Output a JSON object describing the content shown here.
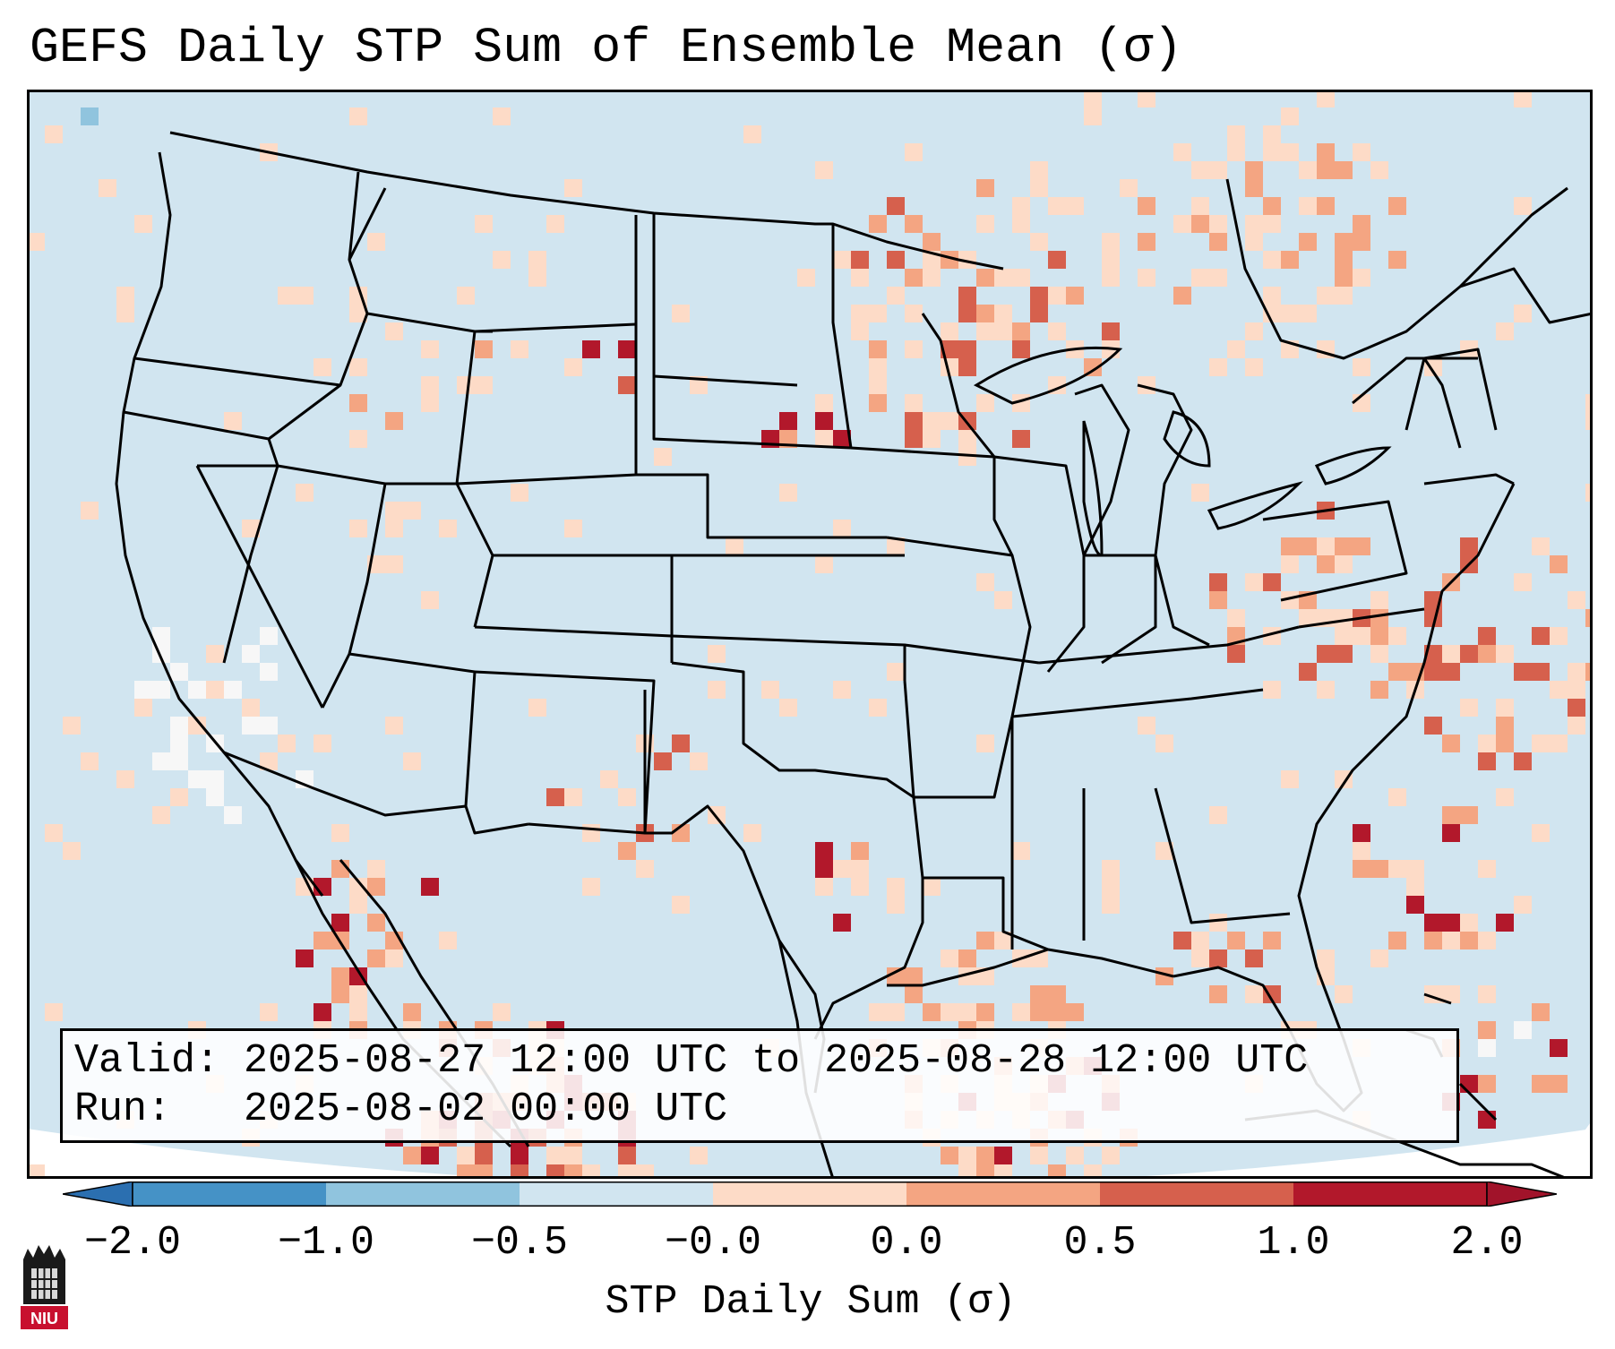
{
  "title": "GEFS Daily STP Sum of Ensemble Mean (σ)",
  "valid_line": "Valid: 2025-08-27 12:00 UTC to 2025-08-28 12:00 UTC",
  "run_line": "Run:   2025-08-02 00:00 UTC",
  "colorbar": {
    "label": "STP Daily Sum (σ)",
    "ticks": [
      "−2.0",
      "−1.0",
      "−0.5",
      "−0.0",
      "0.0",
      "0.5",
      "1.0",
      "2.0"
    ],
    "colors": [
      "#4592c6",
      "#90c4de",
      "#d1e5f0",
      "#f7f7f7",
      "#fddbc7",
      "#f4a582",
      "#d6604d",
      "#b2182b"
    ],
    "extend_low_color": "#2b6fb0",
    "extend_high_color": "#a1132a"
  },
  "logo": {
    "text": "NIU",
    "color": "#c8102e"
  },
  "map": {
    "land_color": "#d1e5f0",
    "hotspots": [
      {
        "region": "south-dakota",
        "level": "high"
      },
      {
        "region": "wyoming-montana",
        "level": "high"
      },
      {
        "region": "north-texas",
        "level": "high"
      },
      {
        "region": "mid-atlantic",
        "level": "moderate"
      },
      {
        "region": "western-atlantic",
        "level": "moderate"
      },
      {
        "region": "upper-midwest",
        "level": "moderate"
      },
      {
        "region": "northern-mexico",
        "level": "high"
      }
    ]
  }
}
